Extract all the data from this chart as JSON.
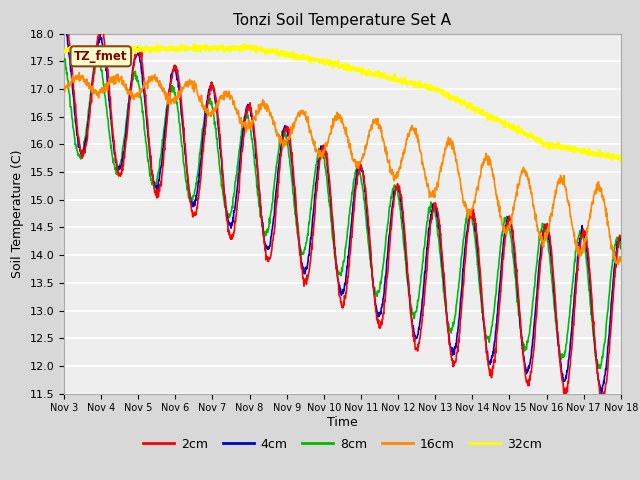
{
  "title": "Tonzi Soil Temperature Set A",
  "xlabel": "Time",
  "ylabel": "Soil Temperature (C)",
  "ylim": [
    11.5,
    18.0
  ],
  "legend_entries": [
    "2cm",
    "4cm",
    "8cm",
    "16cm",
    "32cm"
  ],
  "legend_colors": [
    "#ff0000",
    "#0000cc",
    "#00bb00",
    "#ff8800",
    "#ffff00"
  ],
  "line_widths": [
    1.2,
    1.2,
    1.2,
    1.2,
    1.8
  ],
  "annotation_text": "TZ_fmet",
  "bg_color": "#d8d8d8",
  "plot_bg_color": "#eeeeee",
  "x_ticks": [
    "Nov 3",
    "Nov 4",
    "Nov 5",
    "Nov 6",
    "Nov 7",
    "Nov 8",
    "Nov 9",
    "Nov 10",
    "Nov 11",
    "Nov 12",
    "Nov 13",
    "Nov 14",
    "Nov 15",
    "Nov 16",
    "Nov 17",
    "Nov 18"
  ],
  "n_points": 1500
}
